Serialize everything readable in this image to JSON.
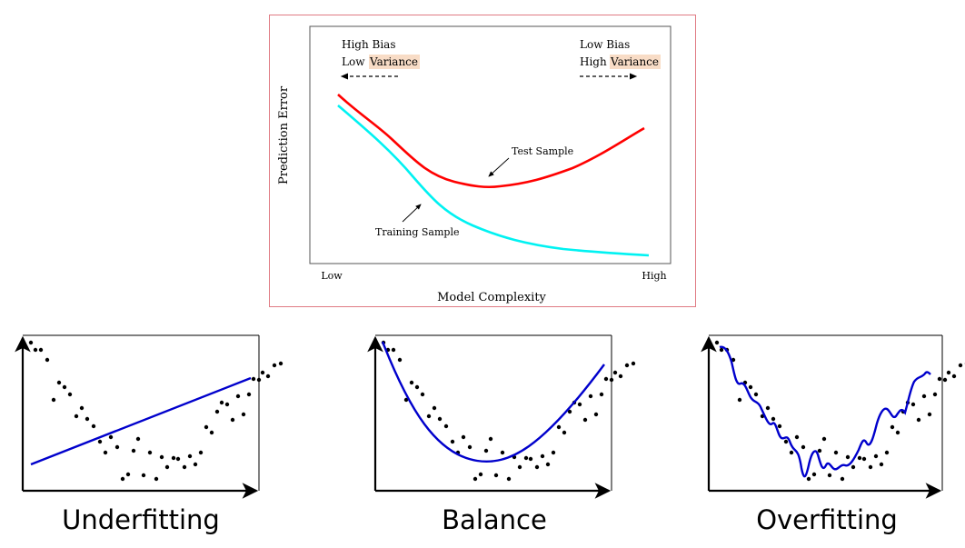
{
  "top_chart": {
    "y_axis_label": "Prediction Error",
    "x_axis_label": "Model Complexity",
    "x_tick_low": "Low",
    "x_tick_high": "High",
    "left_note_line1": "High Bias",
    "left_note_line2_prefix": "Low ",
    "left_note_highlight": "Variance",
    "right_note_line1": "Low Bias",
    "right_note_line2_prefix": "High ",
    "right_note_highlight": "Variance",
    "test_label": "Test Sample",
    "training_label": "Training Sample",
    "highlight_color": "#f8dcc6"
  },
  "chart_data": [
    {
      "type": "line",
      "xlabel": "Model Complexity",
      "ylabel": "Prediction Error",
      "x_range": [
        "Low",
        "High"
      ],
      "series": [
        {
          "name": "Test Sample",
          "color": "#ff0000",
          "x": [
            0,
            0.1,
            0.2,
            0.3,
            0.4,
            0.5,
            0.6,
            0.7,
            0.8,
            0.9,
            1.0
          ],
          "y": [
            0.81,
            0.71,
            0.62,
            0.52,
            0.46,
            0.44,
            0.45,
            0.49,
            0.55,
            0.63,
            0.72
          ]
        },
        {
          "name": "Training Sample",
          "color": "#00ffff",
          "x": [
            0,
            0.1,
            0.2,
            0.3,
            0.4,
            0.5,
            0.6,
            0.7,
            0.8,
            0.9,
            1.0
          ],
          "y": [
            0.76,
            0.65,
            0.52,
            0.38,
            0.27,
            0.2,
            0.15,
            0.12,
            0.1,
            0.09,
            0.08
          ]
        }
      ]
    },
    {
      "type": "scatter",
      "title": "Underfitting",
      "fit": "linear",
      "line_color": "#0000cc"
    },
    {
      "type": "scatter",
      "title": "Balance",
      "fit": "quadratic",
      "line_color": "#0000cc"
    },
    {
      "type": "scatter",
      "title": "Overfitting",
      "fit": "wiggly",
      "line_color": "#0000cc"
    }
  ],
  "panels": {
    "underfitting": {
      "caption": "Underfitting"
    },
    "balance": {
      "caption": "Balance"
    },
    "overfitting": {
      "caption": "Overfitting"
    }
  }
}
